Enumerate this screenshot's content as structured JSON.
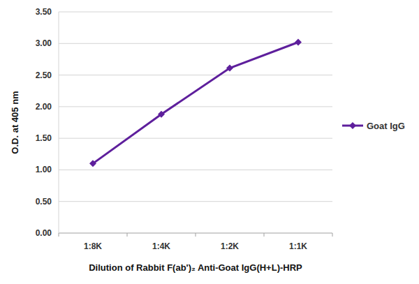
{
  "chart_data": {
    "type": "line",
    "x_label": "Dilution of Rabbit F(ab')₂ Anti-Goat IgG(H+L)-HRP",
    "y_label": "O.D. at 405 nm",
    "categories": [
      "1:8K",
      "1:4K",
      "1:2K",
      "1:1K"
    ],
    "series": [
      {
        "name": "Goat IgG",
        "color": "#5e1f9c",
        "values": [
          1.1,
          1.88,
          2.61,
          3.02
        ],
        "marker": "diamond"
      }
    ],
    "ylim": [
      0,
      3.5
    ],
    "yticks": [
      {
        "value": 0,
        "label": "0.00"
      },
      {
        "value": 0.5,
        "label": "0.50"
      },
      {
        "value": 1,
        "label": "1.00"
      },
      {
        "value": 1.5,
        "label": "1.50"
      },
      {
        "value": 2,
        "label": "2.00"
      },
      {
        "value": 2.5,
        "label": "2.50"
      },
      {
        "value": 3,
        "label": "3.00"
      },
      {
        "value": 3.5,
        "label": "3.50"
      }
    ],
    "grid": true,
    "legend": "right"
  }
}
